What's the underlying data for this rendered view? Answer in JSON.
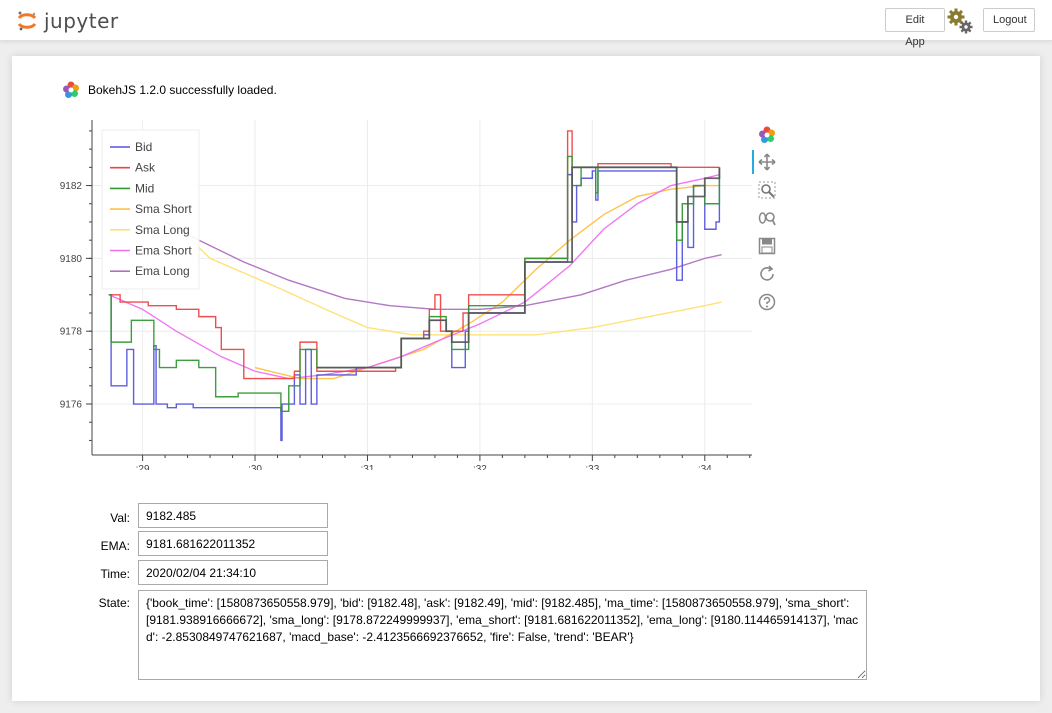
{
  "header": {
    "logo_text": "jupyter",
    "edit_app_label": "Edit App",
    "logout_label": "Logout"
  },
  "bokeh_status": "BokehJS 1.2.0 successfully loaded.",
  "colors": {
    "bid": "#5555dd",
    "ask": "#ee4444",
    "mid": "#339933",
    "sma_short": "#ffc040",
    "sma_long": "#ffe070",
    "ema_short": "#f070f0",
    "ema_long": "#b070c0",
    "price": "#555555"
  },
  "chart_data": {
    "type": "line",
    "x_ticks": [
      ":29",
      ":30",
      ":31",
      ":32",
      ":33",
      ":34"
    ],
    "y_ticks": [
      "9176",
      "9178",
      "9180",
      "9182"
    ],
    "xlim": [
      28.55,
      34.42
    ],
    "ylim": [
      9174.6,
      9183.8
    ],
    "legend_position": "top-left",
    "grid": true,
    "series": [
      {
        "name": "Bid",
        "color_key": "bid",
        "step": true,
        "points": [
          [
            28.7,
            9179.0
          ],
          [
            28.72,
            9176.5
          ],
          [
            28.85,
            9176.5
          ],
          [
            28.86,
            9177.5
          ],
          [
            28.9,
            9177.5
          ],
          [
            28.92,
            9176.0
          ],
          [
            29.05,
            9176.0
          ],
          [
            29.1,
            9177.6
          ],
          [
            29.12,
            9176.0
          ],
          [
            29.2,
            9176.0
          ],
          [
            29.22,
            9175.9
          ],
          [
            29.3,
            9176.0
          ],
          [
            29.4,
            9176.0
          ],
          [
            29.45,
            9175.9
          ],
          [
            29.85,
            9175.9
          ],
          [
            30.2,
            9175.9
          ],
          [
            30.23,
            9175.0
          ],
          [
            30.24,
            9176.0
          ],
          [
            30.3,
            9176.0
          ],
          [
            30.35,
            9176.8
          ],
          [
            30.4,
            9176.0
          ],
          [
            30.45,
            9177.5
          ],
          [
            30.5,
            9176.0
          ],
          [
            30.55,
            9176.8
          ],
          [
            30.9,
            9177.0
          ],
          [
            31.25,
            9177.0
          ],
          [
            31.3,
            9177.8
          ],
          [
            31.5,
            9177.9
          ],
          [
            31.55,
            9178.3
          ],
          [
            31.7,
            9178.0
          ],
          [
            31.75,
            9177.0
          ],
          [
            31.85,
            9177.0
          ],
          [
            31.87,
            9178.0
          ],
          [
            31.9,
            9178.5
          ],
          [
            32.1,
            9178.5
          ],
          [
            32.4,
            9179.9
          ],
          [
            32.7,
            9179.9
          ],
          [
            32.78,
            9182.3
          ],
          [
            32.82,
            9181.0
          ],
          [
            32.86,
            9182.0
          ],
          [
            32.9,
            9182.2
          ],
          [
            33.0,
            9182.4
          ],
          [
            33.03,
            9181.6
          ],
          [
            33.05,
            9182.4
          ],
          [
            33.7,
            9182.4
          ],
          [
            33.75,
            9179.4
          ],
          [
            33.8,
            9181.0
          ],
          [
            33.85,
            9180.3
          ],
          [
            33.9,
            9182.0
          ],
          [
            34.0,
            9180.8
          ],
          [
            34.1,
            9181.0
          ],
          [
            34.13,
            9182.4
          ]
        ]
      },
      {
        "name": "Ask",
        "color_key": "ask",
        "step": true,
        "points": [
          [
            28.7,
            9179.0
          ],
          [
            28.8,
            9178.8
          ],
          [
            29.05,
            9178.7
          ],
          [
            29.3,
            9178.6
          ],
          [
            29.5,
            9178.4
          ],
          [
            29.6,
            9178.4
          ],
          [
            29.65,
            9178.1
          ],
          [
            29.7,
            9177.5
          ],
          [
            29.9,
            9176.7
          ],
          [
            30.2,
            9176.7
          ],
          [
            30.35,
            9176.9
          ],
          [
            30.4,
            9177.7
          ],
          [
            30.45,
            9177.7
          ],
          [
            30.55,
            9176.9
          ],
          [
            31.25,
            9177.0
          ],
          [
            31.3,
            9177.8
          ],
          [
            31.5,
            9178.0
          ],
          [
            31.55,
            9178.6
          ],
          [
            31.6,
            9179.0
          ],
          [
            31.65,
            9178.0
          ],
          [
            31.85,
            9178.5
          ],
          [
            31.9,
            9179.0
          ],
          [
            32.1,
            9179.0
          ],
          [
            32.4,
            9180.0
          ],
          [
            32.7,
            9180.0
          ],
          [
            32.78,
            9183.5
          ],
          [
            32.82,
            9182.5
          ],
          [
            33.0,
            9182.5
          ],
          [
            33.05,
            9182.6
          ],
          [
            33.7,
            9182.5
          ],
          [
            33.8,
            9182.5
          ],
          [
            34.13,
            9182.5
          ]
        ]
      },
      {
        "name": "Mid",
        "color_key": "mid",
        "step": true,
        "points": [
          [
            28.7,
            9179.0
          ],
          [
            28.72,
            9177.7
          ],
          [
            28.85,
            9177.7
          ],
          [
            28.9,
            9178.3
          ],
          [
            29.05,
            9178.3
          ],
          [
            29.1,
            9177.5
          ],
          [
            29.15,
            9177.0
          ],
          [
            29.3,
            9177.2
          ],
          [
            29.5,
            9177.0
          ],
          [
            29.65,
            9176.2
          ],
          [
            29.85,
            9176.3
          ],
          [
            30.2,
            9176.3
          ],
          [
            30.23,
            9175.8
          ],
          [
            30.3,
            9176.5
          ],
          [
            30.4,
            9177.5
          ],
          [
            30.55,
            9177.0
          ],
          [
            31.25,
            9177.0
          ],
          [
            31.3,
            9177.8
          ],
          [
            31.55,
            9178.4
          ],
          [
            31.7,
            9178.0
          ],
          [
            31.75,
            9177.5
          ],
          [
            31.9,
            9178.7
          ],
          [
            32.1,
            9178.7
          ],
          [
            32.4,
            9180.0
          ],
          [
            32.7,
            9180.0
          ],
          [
            32.78,
            9182.8
          ],
          [
            32.82,
            9182.0
          ],
          [
            32.9,
            9182.5
          ],
          [
            33.03,
            9181.8
          ],
          [
            33.05,
            9182.5
          ],
          [
            33.7,
            9182.5
          ],
          [
            33.75,
            9180.5
          ],
          [
            33.8,
            9181.5
          ],
          [
            33.9,
            9182.0
          ],
          [
            34.0,
            9181.5
          ],
          [
            34.13,
            9182.5
          ]
        ]
      },
      {
        "name": "Sma Short",
        "color_key": "sma_short",
        "step": false,
        "points": [
          [
            30.0,
            9177.0
          ],
          [
            30.4,
            9176.7
          ],
          [
            30.7,
            9176.7
          ],
          [
            31.0,
            9177.0
          ],
          [
            31.5,
            9177.5
          ],
          [
            31.9,
            9178.2
          ],
          [
            32.2,
            9178.8
          ],
          [
            32.5,
            9179.7
          ],
          [
            32.8,
            9180.5
          ],
          [
            33.1,
            9181.2
          ],
          [
            33.4,
            9181.7
          ],
          [
            33.7,
            9181.9
          ],
          [
            34.0,
            9182.0
          ],
          [
            34.13,
            9182.0
          ]
        ]
      },
      {
        "name": "Sma Long",
        "color_key": "sma_long",
        "step": false,
        "points": [
          [
            29.2,
            9181.2
          ],
          [
            29.6,
            9180.0
          ],
          [
            30.2,
            9179.2
          ],
          [
            30.7,
            9178.5
          ],
          [
            31.0,
            9178.1
          ],
          [
            31.4,
            9177.9
          ],
          [
            31.9,
            9177.9
          ],
          [
            32.5,
            9177.9
          ],
          [
            33.0,
            9178.1
          ],
          [
            33.5,
            9178.4
          ],
          [
            34.0,
            9178.7
          ],
          [
            34.15,
            9178.8
          ]
        ]
      },
      {
        "name": "Ema Short",
        "color_key": "ema_short",
        "step": false,
        "points": [
          [
            28.7,
            9179.0
          ],
          [
            29.0,
            9178.6
          ],
          [
            29.3,
            9178.0
          ],
          [
            29.7,
            9177.3
          ],
          [
            30.0,
            9176.9
          ],
          [
            30.3,
            9176.7
          ],
          [
            30.6,
            9176.8
          ],
          [
            31.0,
            9177.0
          ],
          [
            31.3,
            9177.3
          ],
          [
            31.6,
            9177.7
          ],
          [
            32.0,
            9178.2
          ],
          [
            32.4,
            9178.8
          ],
          [
            32.8,
            9179.8
          ],
          [
            33.1,
            9180.8
          ],
          [
            33.4,
            9181.5
          ],
          [
            33.7,
            9182.0
          ],
          [
            34.0,
            9182.2
          ],
          [
            34.13,
            9182.3
          ]
        ]
      },
      {
        "name": "Ema Long",
        "color_key": "ema_long",
        "step": false,
        "points": [
          [
            29.2,
            9181.0
          ],
          [
            29.5,
            9180.5
          ],
          [
            29.9,
            9179.9
          ],
          [
            30.3,
            9179.4
          ],
          [
            30.8,
            9178.9
          ],
          [
            31.2,
            9178.7
          ],
          [
            31.6,
            9178.6
          ],
          [
            32.0,
            9178.6
          ],
          [
            32.4,
            9178.7
          ],
          [
            32.9,
            9179.0
          ],
          [
            33.3,
            9179.4
          ],
          [
            33.7,
            9179.7
          ],
          [
            34.0,
            9180.0
          ],
          [
            34.15,
            9180.1
          ]
        ]
      },
      {
        "name": "",
        "color_key": "price",
        "step": true,
        "points": [
          [
            30.55,
            9177.0
          ],
          [
            31.25,
            9177.0
          ],
          [
            31.3,
            9177.8
          ],
          [
            31.55,
            9178.3
          ],
          [
            31.7,
            9178.0
          ],
          [
            31.75,
            9177.7
          ],
          [
            31.9,
            9178.5
          ],
          [
            32.1,
            9178.5
          ],
          [
            32.4,
            9179.9
          ],
          [
            32.7,
            9179.9
          ],
          [
            32.82,
            9182.5
          ],
          [
            33.05,
            9182.5
          ],
          [
            33.7,
            9182.5
          ],
          [
            33.75,
            9181.0
          ],
          [
            33.85,
            9181.7
          ],
          [
            34.0,
            9182.2
          ],
          [
            34.13,
            9182.5
          ]
        ]
      }
    ]
  },
  "fields": {
    "val_label": "Val:",
    "val_value": "9182.485",
    "ema_label": "EMA:",
    "ema_value": "9181.681622011352",
    "time_label": "Time:",
    "time_value": "2020/02/04 21:34:10",
    "state_label": "State:",
    "state_value": "{'book_time': [1580873650558.979], 'bid': [9182.48], 'ask': [9182.49], 'mid': [9182.485], 'ma_time': [1580873650558.979], 'sma_short': [9181.938916666672], 'sma_long': [9178.872249999937], 'ema_short': [9181.681622011352], 'ema_long': [9180.114465914137], 'macd': -2.8530849747621687, 'macd_base': -2.4123566692376652, 'fire': False, 'trend': 'BEAR'}"
  }
}
